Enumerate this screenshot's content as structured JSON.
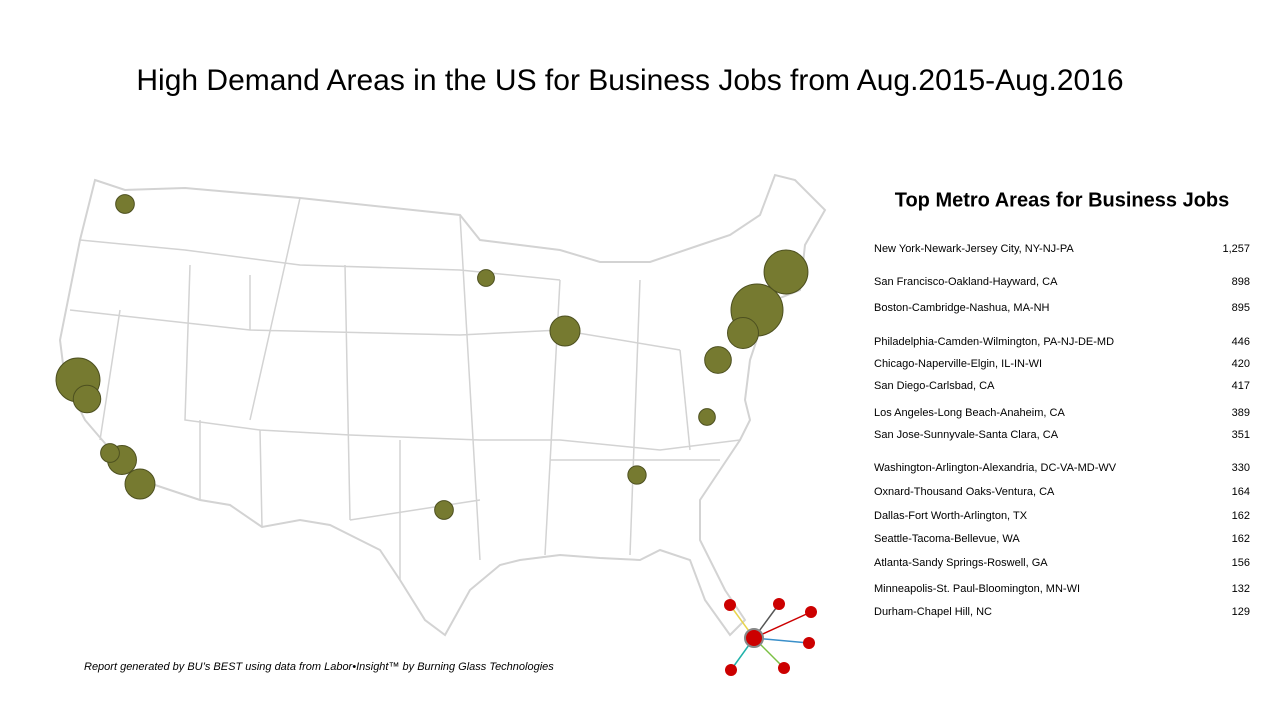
{
  "title": "High Demand Areas in the US for Business Jobs from Aug.2015-Aug.2016",
  "table": {
    "title": "Top Metro Areas for Business Jobs",
    "rows": [
      {
        "name": "New York-Newark-Jersey City, NY-NJ-PA",
        "value": {
          "value": 1257,
          "label": "1,257"
        }
      },
      {
        "name": "San Francisco-Oakland-Hayward, CA",
        "value": 898
      },
      {
        "name": "Boston-Cambridge-Nashua, MA-NH",
        "value": 895
      },
      {
        "name": "Philadelphia-Camden-Wilmington, PA-NJ-DE-MD",
        "value": 446
      },
      {
        "name": "Chicago-Naperville-Elgin, IL-IN-WI",
        "value": 420
      },
      {
        "name": "San Diego-Carlsbad, CA",
        "value": 417
      },
      {
        "name": "Los Angeles-Long Beach-Anaheim, CA",
        "value": 389
      },
      {
        "name": "San Jose-Sunnyvale-Santa Clara, CA",
        "value": 351
      },
      {
        "name": "Washington-Arlington-Alexandria, DC-VA-MD-WV",
        "value": 330
      },
      {
        "name": "Oxnard-Thousand Oaks-Ventura, CA",
        "value": 164
      },
      {
        "name": "Dallas-Fort Worth-Arlington, TX",
        "value": 162
      },
      {
        "name": "Seattle-Tacoma-Bellevue,  WA",
        "value": 162
      },
      {
        "name": "Atlanta-Sandy Springs-Roswell, GA",
        "value": 156
      },
      {
        "name": "Minneapolis-St. Paul-Bloomington, MN-WI",
        "value": 132
      },
      {
        "name": "Durham-Chapel Hill, NC",
        "value": 129
      }
    ]
  },
  "footnote": "Report generated by BU’s BEST using data from Labor•Insight™ by Burning Glass Technologies"
}
